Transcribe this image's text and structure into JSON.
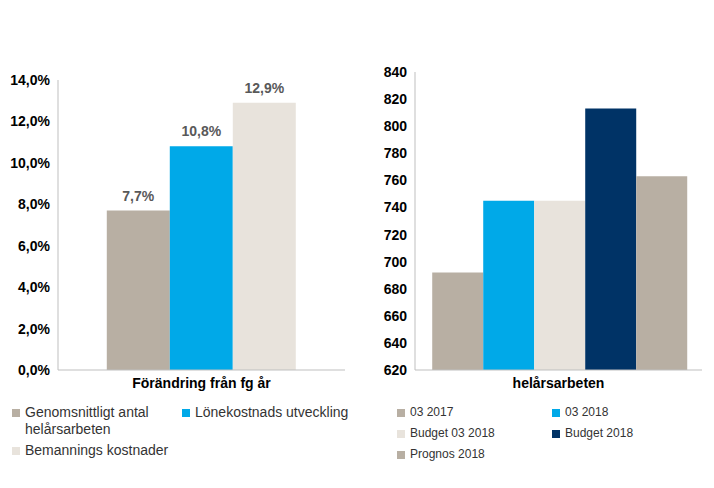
{
  "chart_data": [
    {
      "type": "bar",
      "categories": [
        "Förändring från fg år"
      ],
      "series": [
        {
          "name": "Genomsnittligt antal helårsarbeten",
          "color": "#B8AFA3",
          "values": [
            7.7
          ],
          "value_labels": [
            "7,7%"
          ]
        },
        {
          "name": "Lönekostnads utveckling",
          "color": "#00A9E8",
          "values": [
            10.8
          ],
          "value_labels": [
            "10,8%"
          ]
        },
        {
          "name": "Bemannings kostnader",
          "color": "#E8E3DC",
          "values": [
            12.9
          ],
          "value_labels": [
            "12,9%"
          ]
        }
      ],
      "ylim": [
        0,
        14
      ],
      "yticks": [
        {
          "value": 0,
          "label": "0,0%"
        },
        {
          "value": 2,
          "label": "2,0%"
        },
        {
          "value": 4,
          "label": "4,0%"
        },
        {
          "value": 6,
          "label": "6,0%"
        },
        {
          "value": 8,
          "label": "8,0%"
        },
        {
          "value": 10,
          "label": "10,0%"
        },
        {
          "value": 12,
          "label": "12,0%"
        },
        {
          "value": 14,
          "label": "14,0%"
        }
      ],
      "data_labels": true,
      "grid": false,
      "legend": "bottom"
    },
    {
      "type": "bar",
      "categories": [
        "helårsarbeten"
      ],
      "series": [
        {
          "name": "03 2017",
          "color": "#B8AFA3",
          "values": [
            692
          ]
        },
        {
          "name": "03 2018",
          "color": "#00A9E8",
          "values": [
            745
          ]
        },
        {
          "name": "Budget 03 2018",
          "color": "#E8E3DC",
          "values": [
            745
          ]
        },
        {
          "name": "Budget 2018",
          "color": "#003366",
          "values": [
            813
          ]
        },
        {
          "name": "Prognos 2018",
          "color": "#B8AFA3",
          "values": [
            763
          ]
        }
      ],
      "ylim": [
        620,
        840
      ],
      "yticks": [
        620,
        640,
        660,
        680,
        700,
        720,
        740,
        760,
        780,
        800,
        820,
        840
      ],
      "data_labels": false,
      "grid": false,
      "legend": "bottom"
    }
  ]
}
